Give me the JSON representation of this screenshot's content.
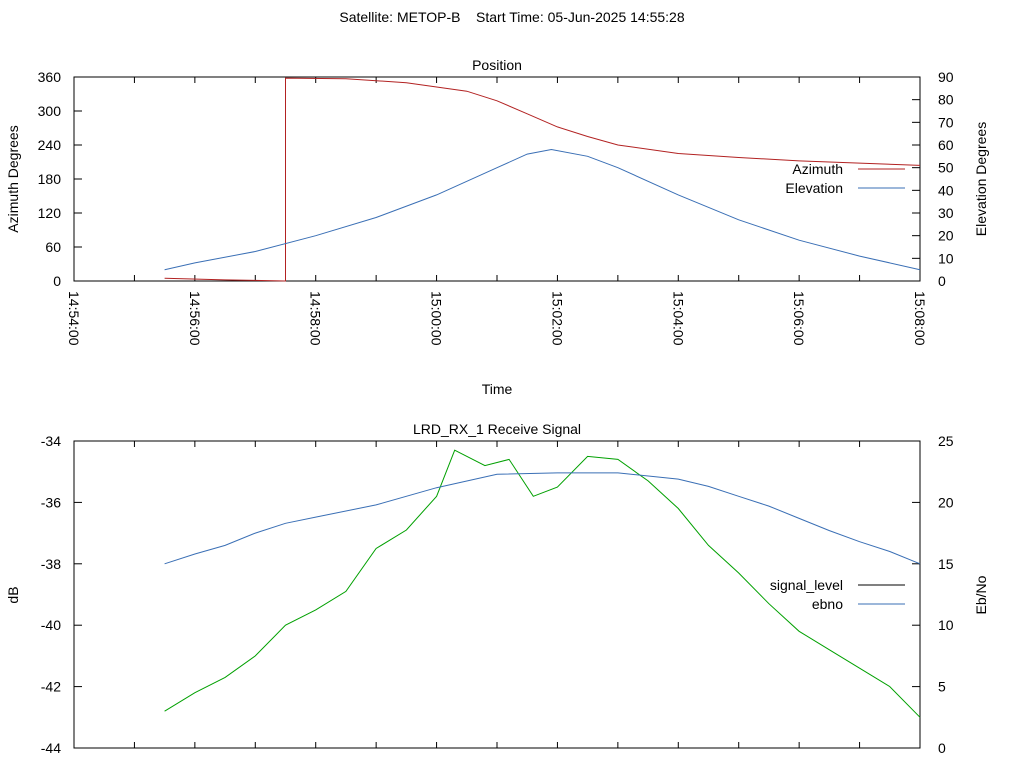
{
  "header": {
    "title": "Satellite: METOP-B    Start Time: 05-Jun-2025 14:55:28"
  },
  "chart_data": [
    {
      "type": "line",
      "title": "Position",
      "xlabel": "Time",
      "ylabel": "Azimuth Degrees",
      "y2label": "Elevation Degrees",
      "x_ticks": [
        "14:54:00",
        "14:56:00",
        "14:58:00",
        "15:00:00",
        "15:02:00",
        "15:04:00",
        "15:06:00",
        "15:08:00"
      ],
      "xlim_minutes": [
        0,
        14
      ],
      "ylim": [
        0,
        360
      ],
      "y_ticks": [
        "0",
        "60",
        "120",
        "180",
        "240",
        "300",
        "360"
      ],
      "y2lim": [
        0,
        90
      ],
      "y2_ticks": [
        "0",
        "10",
        "20",
        "30",
        "40",
        "50",
        "60",
        "70",
        "80",
        "90"
      ],
      "legend_position": "right",
      "series": [
        {
          "name": "Azimuth",
          "axis": "y",
          "color": "#b22222",
          "x_minutes": [
            1.5,
            2.5,
            3.0,
            3.5,
            3.5,
            4.5,
            5.5,
            6.5,
            7.0,
            7.5,
            8.0,
            8.5,
            9.0,
            10.0,
            11.0,
            12.0,
            13.0,
            14.0
          ],
          "values": [
            5,
            2,
            1,
            0,
            358,
            357,
            350,
            335,
            318,
            295,
            272,
            255,
            240,
            225,
            218,
            212,
            208,
            204
          ]
        },
        {
          "name": "Elevation",
          "axis": "y2",
          "color": "#3a6fb5",
          "x_minutes": [
            1.5,
            2.0,
            3.0,
            4.0,
            5.0,
            6.0,
            6.5,
            7.0,
            7.5,
            7.9,
            8.5,
            9.0,
            10.0,
            11.0,
            12.0,
            13.0,
            14.0
          ],
          "values": [
            5,
            8,
            13,
            20,
            28,
            38,
            44,
            50,
            56,
            58,
            55,
            50,
            38,
            27,
            18,
            11,
            5
          ]
        }
      ]
    },
    {
      "type": "line",
      "title": "LRD_RX_1 Receive Signal",
      "ylabel": "dB",
      "y2label": "Eb/No",
      "xlim_minutes": [
        0,
        14
      ],
      "ylim": [
        -44,
        -34
      ],
      "y_ticks": [
        "-44",
        "-42",
        "-40",
        "-38",
        "-36",
        "-34"
      ],
      "y2lim": [
        0,
        25
      ],
      "y2_ticks": [
        "0",
        "5",
        "10",
        "15",
        "20",
        "25"
      ],
      "legend_position": "right",
      "series": [
        {
          "name": "signal_level",
          "axis": "y",
          "color": "#000000",
          "legend_color": "#000000",
          "line_color": "#00a000",
          "x_minutes": [
            1.5,
            2.0,
            2.5,
            3.0,
            3.5,
            4.0,
            4.5,
            5.0,
            5.5,
            6.0,
            6.3,
            6.8,
            7.2,
            7.6,
            8.0,
            8.5,
            9.0,
            9.5,
            10.0,
            10.5,
            11.0,
            11.5,
            12.0,
            12.5,
            13.0,
            13.5,
            14.0
          ],
          "values": [
            -42.8,
            -42.2,
            -41.7,
            -41.0,
            -40.0,
            -39.5,
            -38.9,
            -37.5,
            -36.9,
            -35.8,
            -34.3,
            -34.8,
            -34.6,
            -35.8,
            -35.5,
            -34.5,
            -34.6,
            -35.3,
            -36.2,
            -37.4,
            -38.3,
            -39.3,
            -40.2,
            -40.8,
            -41.4,
            -42.0,
            -43.0
          ]
        },
        {
          "name": "ebno",
          "axis": "y2",
          "color": "#3a6fb5",
          "x_minutes": [
            1.5,
            2.0,
            2.5,
            3.0,
            3.5,
            4.0,
            5.0,
            6.0,
            7.0,
            8.0,
            9.0,
            10.0,
            10.5,
            11.0,
            11.5,
            12.0,
            12.5,
            13.0,
            13.5,
            14.0
          ],
          "values": [
            15.0,
            15.8,
            16.5,
            17.5,
            18.3,
            18.8,
            19.8,
            21.2,
            22.3,
            22.4,
            22.4,
            21.9,
            21.3,
            20.5,
            19.7,
            18.7,
            17.7,
            16.8,
            16.0,
            15.0
          ]
        }
      ]
    }
  ]
}
